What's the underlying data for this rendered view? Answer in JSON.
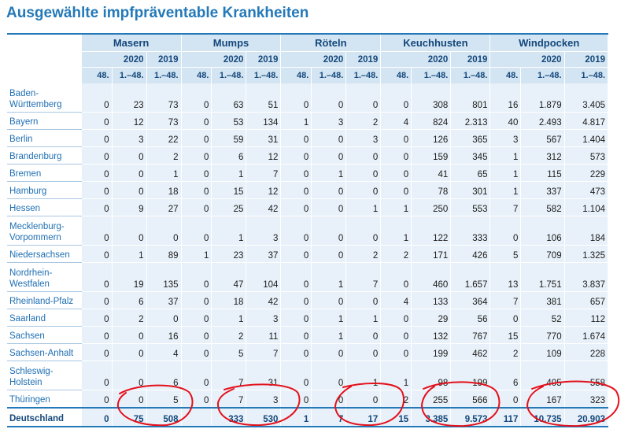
{
  "title": "Ausgewählte impfpräventable Krankheiten",
  "diseases": [
    "Masern",
    "Mumps",
    "Röteln",
    "Keuchhusten",
    "Windpocken"
  ],
  "year_headers": [
    "2020",
    "2019"
  ],
  "week_headers": [
    "48.",
    "1.–48.",
    "1.–48."
  ],
  "rows": [
    {
      "name": "Baden-\nWürttemberg",
      "values": [
        "0",
        "23",
        "73",
        "0",
        "63",
        "51",
        "0",
        "0",
        "0",
        "0",
        "308",
        "801",
        "16",
        "1.879",
        "3.405"
      ]
    },
    {
      "name": "Bayern",
      "values": [
        "0",
        "12",
        "73",
        "0",
        "53",
        "134",
        "1",
        "3",
        "2",
        "4",
        "824",
        "2.313",
        "40",
        "2.493",
        "4.817"
      ]
    },
    {
      "name": "Berlin",
      "values": [
        "0",
        "3",
        "22",
        "0",
        "59",
        "31",
        "0",
        "0",
        "3",
        "0",
        "126",
        "365",
        "3",
        "567",
        "1.404"
      ]
    },
    {
      "name": "Brandenburg",
      "values": [
        "0",
        "0",
        "2",
        "0",
        "6",
        "12",
        "0",
        "0",
        "0",
        "0",
        "159",
        "345",
        "1",
        "312",
        "573"
      ]
    },
    {
      "name": "Bremen",
      "values": [
        "0",
        "0",
        "1",
        "0",
        "1",
        "7",
        "0",
        "1",
        "0",
        "0",
        "41",
        "65",
        "1",
        "115",
        "229"
      ]
    },
    {
      "name": "Hamburg",
      "values": [
        "0",
        "0",
        "18",
        "0",
        "15",
        "12",
        "0",
        "0",
        "0",
        "0",
        "78",
        "301",
        "1",
        "337",
        "473"
      ]
    },
    {
      "name": "Hessen",
      "values": [
        "0",
        "9",
        "27",
        "0",
        "25",
        "42",
        "0",
        "0",
        "1",
        "1",
        "250",
        "553",
        "7",
        "582",
        "1.104"
      ]
    },
    {
      "name": "Mecklenburg-\nVorpommern",
      "values": [
        "0",
        "0",
        "0",
        "0",
        "1",
        "3",
        "0",
        "0",
        "0",
        "1",
        "122",
        "333",
        "0",
        "106",
        "184"
      ]
    },
    {
      "name": "Niedersachsen",
      "values": [
        "0",
        "1",
        "89",
        "1",
        "23",
        "37",
        "0",
        "0",
        "2",
        "2",
        "171",
        "426",
        "5",
        "709",
        "1.325"
      ]
    },
    {
      "name": "Nordrhein-\nWestfalen",
      "values": [
        "0",
        "19",
        "135",
        "0",
        "47",
        "104",
        "0",
        "1",
        "7",
        "0",
        "460",
        "1.657",
        "13",
        "1.751",
        "3.837"
      ]
    },
    {
      "name": "Rheinland-Pfalz",
      "values": [
        "0",
        "6",
        "37",
        "0",
        "18",
        "42",
        "0",
        "0",
        "0",
        "4",
        "133",
        "364",
        "7",
        "381",
        "657"
      ]
    },
    {
      "name": "Saarland",
      "values": [
        "0",
        "2",
        "0",
        "0",
        "1",
        "3",
        "0",
        "1",
        "1",
        "0",
        "29",
        "56",
        "0",
        "52",
        "112"
      ]
    },
    {
      "name": "Sachsen",
      "values": [
        "0",
        "0",
        "16",
        "0",
        "2",
        "11",
        "0",
        "1",
        "0",
        "0",
        "132",
        "767",
        "15",
        "770",
        "1.674"
      ]
    },
    {
      "name": "Sachsen-Anhalt",
      "values": [
        "0",
        "0",
        "4",
        "0",
        "5",
        "7",
        "0",
        "0",
        "0",
        "0",
        "199",
        "462",
        "2",
        "109",
        "228"
      ]
    },
    {
      "name": "Schleswig-\nHolstein",
      "values": [
        "0",
        "0",
        "6",
        "0",
        "7",
        "31",
        "0",
        "0",
        "1",
        "1",
        "98",
        "199",
        "6",
        "405",
        "558"
      ]
    },
    {
      "name": "Thüringen",
      "values": [
        "0",
        "0",
        "5",
        "0",
        "7",
        "3",
        "0",
        "0",
        "0",
        "2",
        "255",
        "566",
        "0",
        "167",
        "323"
      ]
    }
  ],
  "total": {
    "name": "Deutschland",
    "values": [
      "0",
      "75",
      "508",
      "",
      "333",
      "530",
      "1",
      "7",
      "17",
      "15",
      "3.385",
      "9.573",
      "117",
      "10.735",
      "20.903"
    ]
  },
  "colors": {
    "title": "#2479b8",
    "header_bg": "#d3e5f2",
    "cell_bg": "#e8f1f9",
    "annotation": "#e3101b"
  }
}
